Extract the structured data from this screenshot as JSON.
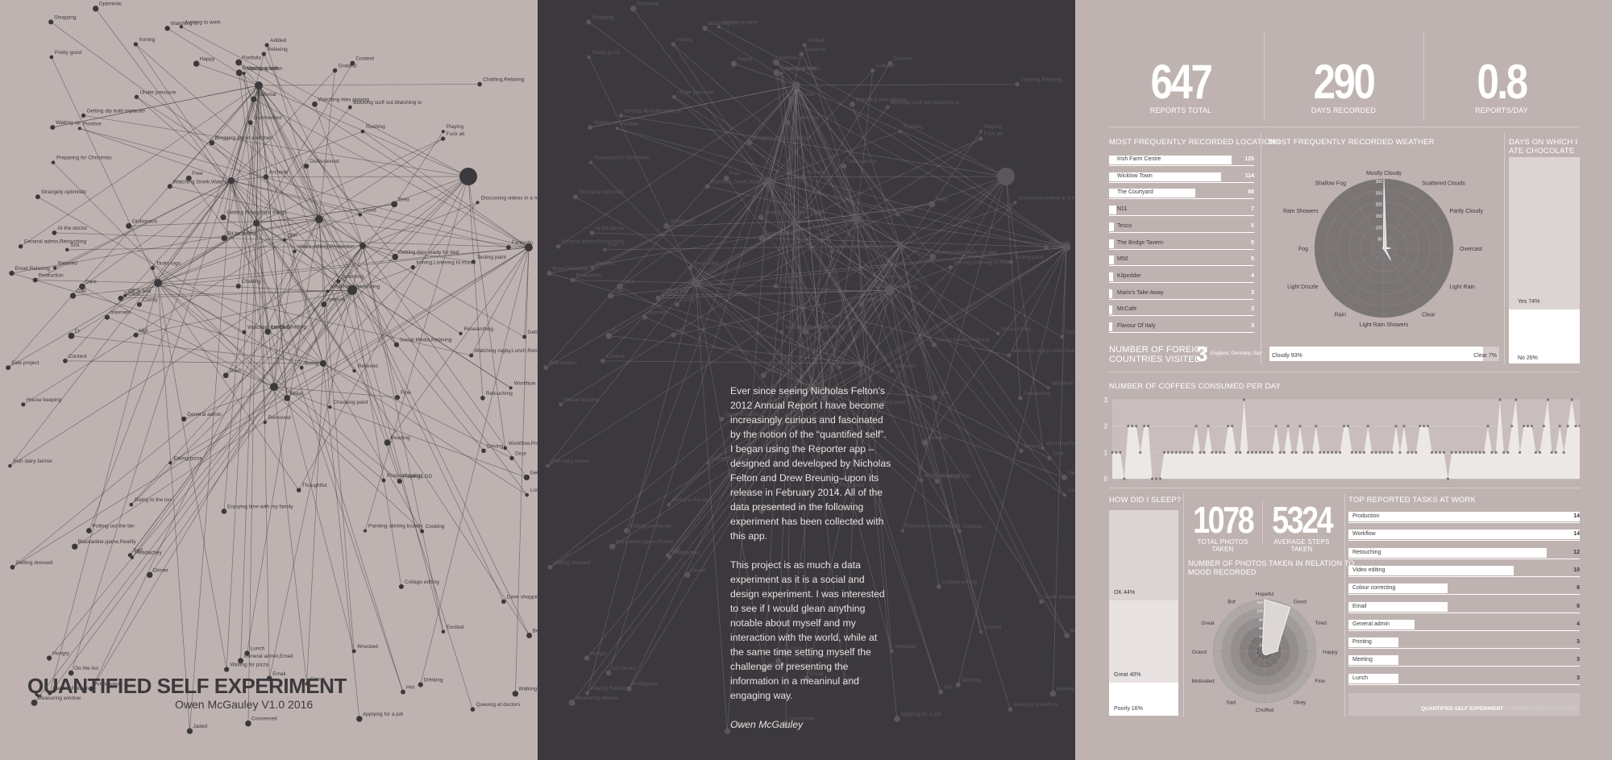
{
  "poster": {
    "title": "QUANTIFIED SELF EXPERIMENT",
    "subtitle": "Owen McGauley V1.0 2016"
  },
  "network": {
    "labels": [
      "Removed",
      "Idol",
      "Hungry",
      "Getting through old things",
      "Content",
      "Going to the loo",
      "Being 34",
      "Measuring window",
      "Cr",
      "Internets",
      "Good",
      "Getting Alex lunch",
      "Video editing,Production",
      "Ironing,Listening to music",
      "Playing Relaxing",
      "Watching rugby,Lunch,Retouching",
      "Artwork",
      "Blocking stuff out,Watching tv",
      "Updating owen",
      "Enjoying time with my family",
      "Fantastic",
      "Lunch,Chatting",
      "Watching the clock",
      "Headachey",
      "Dinner",
      "Walking Alex home",
      "Playing LGD",
      "General admin,Retouching",
      "School",
      "Tired",
      "Email,Relaxing",
      "Relaxing a bath",
      "Lunch",
      "Editorial",
      "Discussing videos in a meeting",
      "Putting out the bin",
      "Wrecked",
      "Playing",
      "Shopping",
      "Excited",
      "Addled",
      "Relaxing",
      "Gluttonous",
      "Positive",
      "Grateful",
      "Content",
      "Getting dressed",
      "Getting Alex ready for bed",
      "Procrastinating",
      "Happy",
      "Pretty good",
      "Watching tv",
      "Chatting",
      "Retouching",
      "On the loo",
      "Email",
      "Concerned",
      "Tired",
      "Drinking",
      "Getting new house",
      "Portfolio",
      "Thoughtful",
      "Collage editing",
      "General admin,Email",
      "Production",
      "Looking for a toy shop",
      "Rushing",
      "Shit",
      "Workflow",
      "Blogging about a kitchen",
      "Sad",
      "Driving",
      "Fuck all",
      "Waiting for pizza",
      "Waking up",
      "Comfy",
      "Arriving to work",
      "Social Media,Relaxing",
      "Chatting,Relaxing",
      "Off to bed",
      "Blackadder,game,Reality",
      "House keeping",
      "Free",
      "Archival",
      "Queuing at doctors",
      "Dove shopping",
      "Preparing for Christmas",
      "Reading",
      "Tasks logo",
      "Ambiguous",
      "Cooking",
      "Watching Alex playing",
      "Dour",
      "General admin",
      "Odd",
      "Fine",
      "Workflow,Retouching",
      "Dark",
      "Hot",
      "Researching",
      "Testing paint",
      "Ironing",
      "Jaded",
      "Choosing paint",
      "Disinherited",
      "Watching Dinek,Watching tv",
      "Disillusioned",
      "Relieved",
      "Side project",
      "Irish dairy farmer",
      "At the doctor",
      "Applying for a job",
      "Optimistic",
      "Better",
      "Grand",
      "Eating pizza",
      "Scanning",
      "Workflow,Production",
      "Painting skirting boards",
      "Under pressure",
      "Strangely optimistic",
      "Great",
      "Relaxed",
      "Getting dip bulb replaced",
      "Smi",
      "Fit for a time"
    ]
  },
  "essay": {
    "paragraph1": "Ever since seeing Nicholas Felton's 2012 Annual Report I have become increasingly curious and fascinated by the notion of the “quantified self”. I began using the Reporter app –designed and developed by Nicholas Felton and Drew Breunig–upon its release in February 2014. All of the data presented in the following experiment has been collected with this app.",
    "paragraph2": "This project is as much a data experiment as it is a social and design experiment. I was interested to see if I would glean anything notable about myself and my interaction with the world, while at the same time setting myself the challenge of presenting the information in a meaninul and engaging way.",
    "signature": "Owen McGauley"
  },
  "stats": {
    "reports_total": {
      "value": "647",
      "label": "REPORTS TOTAL"
    },
    "days_recorded": {
      "value": "290",
      "label": "DAYS RECORDED"
    },
    "reports_per_day": {
      "value": "0.8",
      "label": "REPORTS/DAY"
    },
    "photos_taken": {
      "value": "1078",
      "label": "TOTAL PHOTOS TAKEN"
    },
    "steps_taken": {
      "value": "5324",
      "label": "AVERAGE STEPS TAKEN"
    }
  },
  "locations": {
    "title": "MOST FREQUENTLY RECORDED LOCATIONS",
    "max": 125,
    "items": [
      {
        "name": "Irish Farm Centre",
        "value": 125
      },
      {
        "name": "Wicklow Town",
        "value": 114
      },
      {
        "name": "The Courtyard",
        "value": 88
      },
      {
        "name": "N11",
        "value": 7
      },
      {
        "name": "Tesco",
        "value": 5
      },
      {
        "name": "The Bridge Tavern",
        "value": 5
      },
      {
        "name": "M50",
        "value": 5
      },
      {
        "name": "Kilpedder",
        "value": 4
      },
      {
        "name": "Mario's Take Away",
        "value": 3
      },
      {
        "name": "McCafe",
        "value": 3
      },
      {
        "name": "Flavour Of Italy",
        "value": 3
      }
    ]
  },
  "foreign": {
    "title_line1": "NUMBER OF FOREIGN",
    "title_line2": "COUNTRIES VISITED",
    "value": "3",
    "list": "England, Germany, Italy"
  },
  "weather": {
    "title": "MOST FREQUENTLY RECORDED WEATHER",
    "categories": [
      "Mostly Cloudy",
      "Scattered Clouds",
      "Partly Cloudy",
      "Overcast",
      "Light Rain",
      "Clear",
      "Light Rain Showers",
      "Rain",
      "Light Drizzle",
      "Fog",
      "Rain Showers",
      "Shallow Fog"
    ],
    "values": [
      300,
      20,
      10,
      30,
      8,
      60,
      5,
      4,
      3,
      5,
      6,
      4
    ],
    "rings": [
      "300",
      "250",
      "200",
      "150",
      "100",
      "50"
    ],
    "rmax": 300,
    "split": {
      "cloudy_label": "Cloudy 93%",
      "cloudy": 93,
      "clear_label": "Clear 7%",
      "clear": 7
    }
  },
  "chocolate": {
    "title_line1": "DAYS ON WHICH I",
    "title_line2": "ATE CHOCOLATE",
    "yes_label": "Yes 74%",
    "yes": 74,
    "no_label": "No 26%",
    "no": 26
  },
  "coffee": {
    "title": "NUMBER OF COFFEES CONSUMED PER DAY",
    "ticks": [
      "0",
      "1",
      "2",
      "3"
    ],
    "ymax": 3,
    "values": [
      1,
      1,
      1,
      0,
      2,
      2,
      2,
      1,
      2,
      2,
      0,
      0,
      0,
      1,
      1,
      1,
      1,
      1,
      1,
      1,
      1,
      2,
      1,
      1,
      2,
      1,
      1,
      1,
      1,
      2,
      2,
      1,
      1,
      3,
      1,
      1,
      1,
      1,
      1,
      1,
      1,
      2,
      1,
      1,
      2,
      1,
      1,
      2,
      1,
      1,
      1,
      2,
      1,
      1,
      1,
      1,
      1,
      1,
      2,
      2,
      1,
      1,
      1,
      1,
      2,
      1,
      1,
      1,
      1,
      1,
      1,
      2,
      1,
      2,
      1,
      1,
      1,
      2,
      2,
      2,
      1,
      1,
      1,
      1,
      0,
      1,
      1,
      1,
      1,
      1,
      1,
      1,
      1,
      1,
      2,
      1,
      1,
      3,
      1,
      1,
      2,
      3,
      1,
      2,
      2,
      2,
      1,
      1,
      2,
      3,
      1,
      1,
      2,
      1,
      2,
      3,
      2,
      2
    ]
  },
  "sleep": {
    "title": "HOW DID I SLEEP?",
    "ok_label": "OK 44%",
    "ok": 44,
    "great_label": "Great 40%",
    "great": 40,
    "poorly_label": "Poorly 16%",
    "poorly": 16
  },
  "mood": {
    "title_line1": "NUMBER OF PHOTOS TAKEN IN RELATION TO",
    "title_line2": "MOOD RECORDED",
    "categories": [
      "Hopeful",
      "Good",
      "Tired",
      "Happy",
      "Fine",
      "Okay",
      "Chuffed",
      "Sad",
      "Motivated",
      "Grand",
      "Great",
      "Bof"
    ],
    "values": [
      120,
      118,
      40,
      30,
      12,
      10,
      8,
      6,
      5,
      4,
      6,
      10
    ],
    "rings": [
      "120",
      "100",
      "80",
      "60",
      "40",
      "20"
    ],
    "rmax": 120
  },
  "tasks": {
    "title": "TOP REPORTED TASKS AT WORK",
    "max": 14,
    "items": [
      {
        "name": "Production",
        "value": 14
      },
      {
        "name": "Workflow",
        "value": 14
      },
      {
        "name": "Retouching",
        "value": 12
      },
      {
        "name": "Video editing",
        "value": 10
      },
      {
        "name": "Colour correcting",
        "value": 6
      },
      {
        "name": "Email",
        "value": 6
      },
      {
        "name": "General admin",
        "value": 4
      },
      {
        "name": "Printing",
        "value": 3
      },
      {
        "name": "Meeting",
        "value": 3
      },
      {
        "name": "Lunch",
        "value": 3
      }
    ]
  },
  "footer": {
    "title": "QUANTIFIED SELF EXPERIMENT",
    "version": "OWEN MCGAULEY V1.0 2016"
  }
}
